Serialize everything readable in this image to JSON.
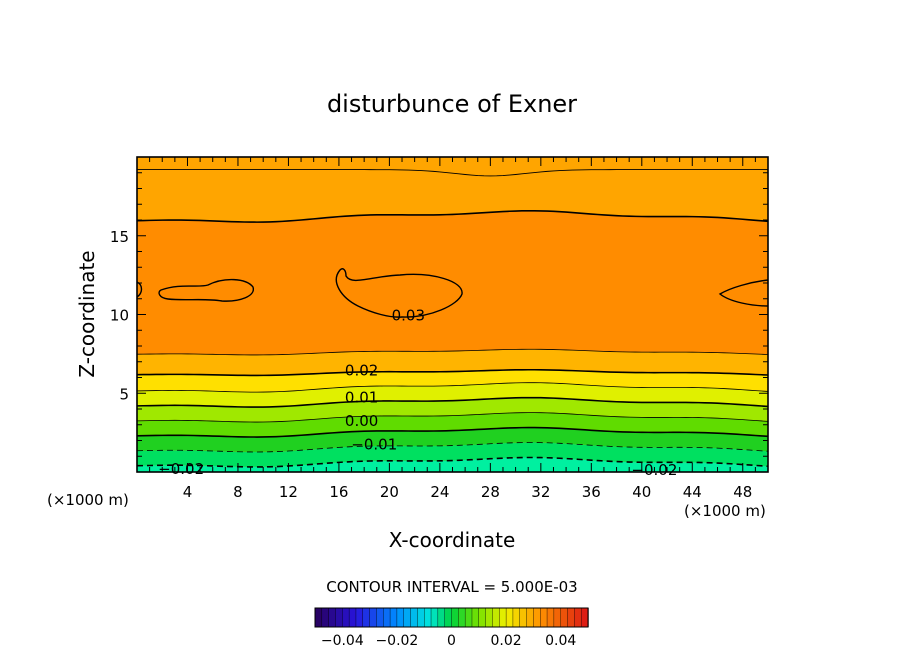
{
  "chart_data": {
    "type": "contour",
    "title": "disturbunce of Exner",
    "xlabel": "X-coordinate",
    "ylabel": "Z-coordinate",
    "x_unit": "(×1000 m)",
    "z_unit": "(×1000 m)",
    "xlim": [
      0,
      50
    ],
    "ylim": [
      0,
      20
    ],
    "x_ticks": [
      {
        "value": 4,
        "label": "4"
      },
      {
        "value": 8,
        "label": "8"
      },
      {
        "value": 12,
        "label": "12"
      },
      {
        "value": 16,
        "label": "16"
      },
      {
        "value": 20,
        "label": "20"
      },
      {
        "value": 24,
        "label": "24"
      },
      {
        "value": 28,
        "label": "28"
      },
      {
        "value": 32,
        "label": "32"
      },
      {
        "value": 36,
        "label": "36"
      },
      {
        "value": 40,
        "label": "40"
      },
      {
        "value": 44,
        "label": "44"
      },
      {
        "value": 48,
        "label": "48"
      }
    ],
    "y_ticks": [
      {
        "value": 5,
        "label": "5"
      },
      {
        "value": 10,
        "label": "10"
      },
      {
        "value": 15,
        "label": "15"
      }
    ],
    "contour_interval_text": "CONTOUR INTERVAL = 5.000E-03",
    "contour_levels": [
      -0.02,
      -0.015,
      -0.01,
      -0.005,
      0.0,
      0.005,
      0.01,
      0.015,
      0.02,
      0.025,
      0.03
    ],
    "contour_labels": [
      {
        "text": "-0.02",
        "x": 3.5,
        "z": 0.25
      },
      {
        "text": "-0.01",
        "x": 18.8,
        "z": 1.8
      },
      {
        "text": "0.00",
        "x": 17.8,
        "z": 3.3
      },
      {
        "text": "0.01",
        "x": 17.8,
        "z": 4.8
      },
      {
        "text": "0.02",
        "x": 17.8,
        "z": 6.5
      },
      {
        "text": "0.03",
        "x": 21.5,
        "z": 10.0
      },
      {
        "text": "-0.02",
        "x": 41.0,
        "z": 0.2
      }
    ],
    "colorbar": {
      "range": [
        -0.05,
        0.05
      ],
      "ticks": [
        {
          "value": -0.04,
          "label": "−0.04"
        },
        {
          "value": -0.02,
          "label": "−0.02"
        },
        {
          "value": 0,
          "label": "0"
        },
        {
          "value": 0.02,
          "label": "0.02"
        },
        {
          "value": 0.04,
          "label": "0.04"
        }
      ]
    }
  }
}
